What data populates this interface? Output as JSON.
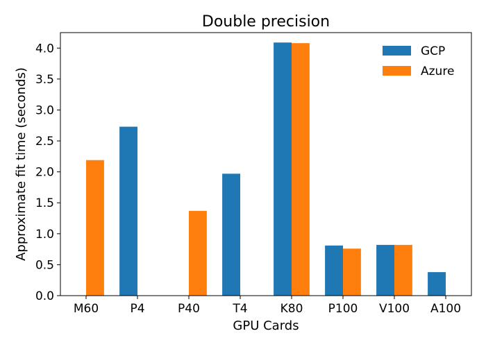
{
  "chart_data": {
    "type": "bar",
    "title": "Double precision",
    "xlabel": "GPU Cards",
    "ylabel": "Approximate fit time (seconds)",
    "categories": [
      "M60",
      "P4",
      "P40",
      "T4",
      "K80",
      "P100",
      "V100",
      "A100"
    ],
    "series": [
      {
        "name": "GCP",
        "color": "#1f77b4",
        "values": [
          null,
          2.73,
          null,
          1.97,
          4.09,
          0.81,
          0.82,
          0.38
        ]
      },
      {
        "name": "Azure",
        "color": "#ff7f0e",
        "values": [
          2.19,
          null,
          1.37,
          null,
          4.08,
          0.76,
          0.82,
          null
        ]
      }
    ],
    "ylim": [
      0,
      4.25
    ],
    "yticks": [
      "0.0",
      "0.5",
      "1.0",
      "1.5",
      "2.0",
      "2.5",
      "3.0",
      "3.5",
      "4.0"
    ],
    "legend_position": "top-right",
    "grid": false
  }
}
